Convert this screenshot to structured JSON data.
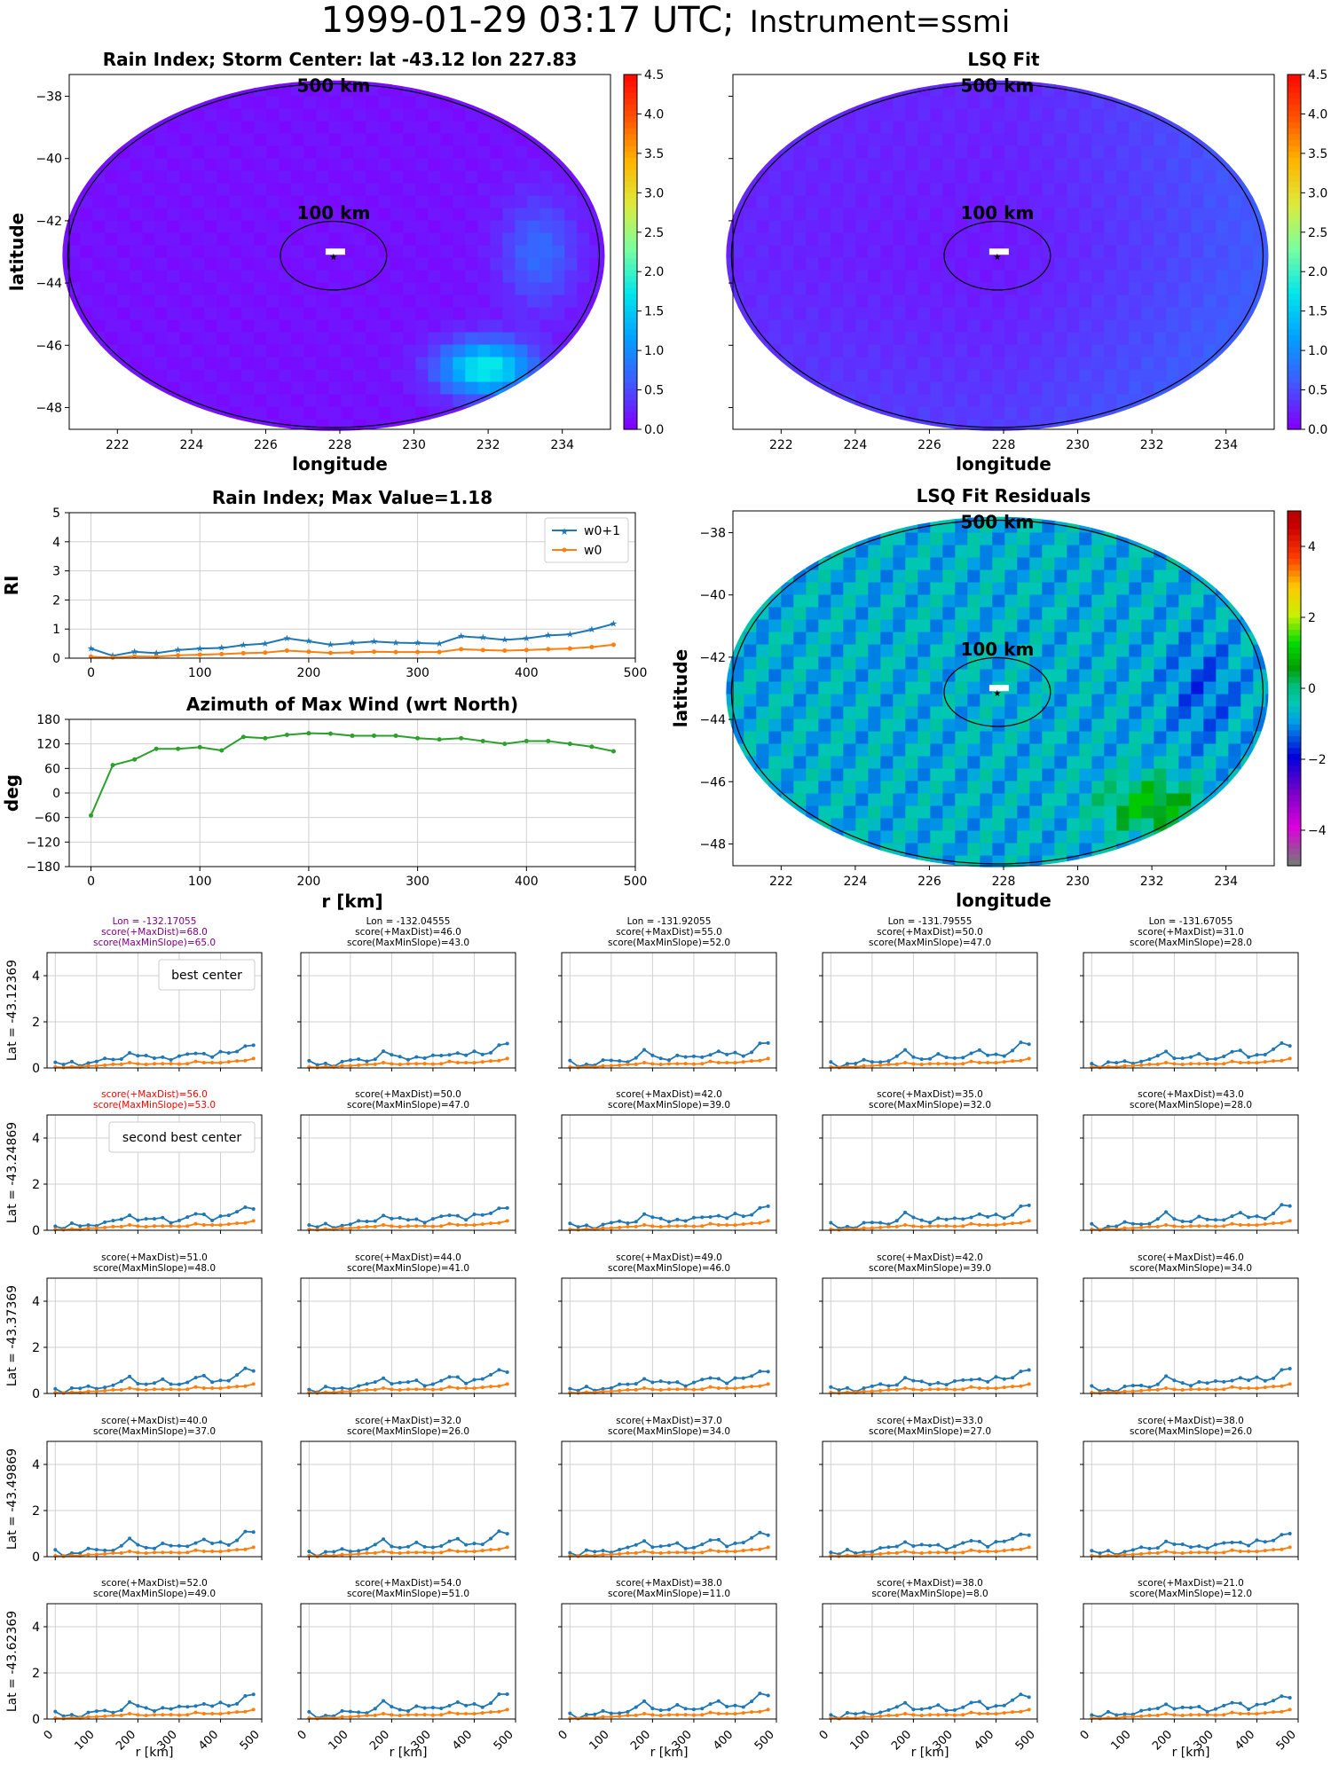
{
  "suptitle": {
    "main": "1999-01-29 03:17 UTC;",
    "instrument": "Instrument=ssmi"
  },
  "colors": {
    "w0p1": "#1f77b4",
    "w0": "#ff7f0e",
    "azimuth": "#2ca02c",
    "best": "#800080",
    "second": "#ff0000",
    "grid": "#d0d0d0"
  },
  "chart_data": [
    {
      "type": "heatmap",
      "title": "Rain Index; Storm Center: lat -43.12 lon 227.83",
      "xlabel": "longitude",
      "ylabel": "latitude",
      "xticks": [
        "222",
        "224",
        "226",
        "228",
        "230",
        "232",
        "234"
      ],
      "yticks": [
        "−38",
        "−40",
        "−42",
        "−44",
        "−46",
        "−48"
      ],
      "xlim": [
        220.7,
        235.3
      ],
      "ylim": [
        -48.7,
        -37.3
      ],
      "colorbar": {
        "ticks": [
          "0.0",
          "0.5",
          "1.0",
          "1.5",
          "2.0",
          "2.5",
          "3.0",
          "3.5",
          "4.0",
          "4.5"
        ],
        "range": [
          0,
          4.5
        ],
        "colormap": "rainbow"
      },
      "annotations": [
        "500 km",
        "100 km"
      ],
      "center": {
        "lon": 227.83,
        "lat": -43.12
      },
      "dominant_value": 0.1,
      "feature": {
        "description": "enhanced rain band south-east of center",
        "max_value": 1.8
      }
    },
    {
      "type": "heatmap",
      "title": "LSQ Fit",
      "xlabel": "longitude",
      "xticks": [
        "222",
        "224",
        "226",
        "228",
        "230",
        "232",
        "234"
      ],
      "xlim": [
        220.7,
        235.3
      ],
      "ylim": [
        -48.7,
        -37.3
      ],
      "colorbar": {
        "ticks": [
          "0.0",
          "0.5",
          "1.0",
          "1.5",
          "2.0",
          "2.5",
          "3.0",
          "3.5",
          "4.0",
          "4.5"
        ],
        "range": [
          0,
          4.5
        ],
        "colormap": "rainbow"
      },
      "annotations": [
        "500 km",
        "100 km"
      ],
      "dominant_value": 0.3
    },
    {
      "type": "line",
      "title": "Rain Index; Max Value=1.18",
      "ylabel": "RI",
      "xticks": [
        "0",
        "100",
        "200",
        "300",
        "400",
        "500"
      ],
      "yticks": [
        "0",
        "1",
        "2",
        "3",
        "4",
        "5"
      ],
      "xlim": [
        -20,
        500
      ],
      "ylim": [
        0,
        5
      ],
      "x": [
        0,
        20,
        40,
        60,
        80,
        100,
        120,
        140,
        160,
        180,
        200,
        220,
        240,
        260,
        280,
        300,
        320,
        340,
        360,
        380,
        400,
        420,
        440,
        460,
        480
      ],
      "series": [
        {
          "name": "w0+1",
          "values": [
            0.33,
            0.08,
            0.22,
            0.17,
            0.28,
            0.33,
            0.35,
            0.45,
            0.5,
            0.68,
            0.58,
            0.46,
            0.52,
            0.57,
            0.53,
            0.52,
            0.5,
            0.75,
            0.7,
            0.63,
            0.68,
            0.78,
            0.82,
            0.98,
            1.18
          ]
        },
        {
          "name": "w0",
          "values": [
            0.05,
            0.02,
            0.06,
            0.05,
            0.1,
            0.12,
            0.14,
            0.17,
            0.19,
            0.26,
            0.22,
            0.18,
            0.2,
            0.22,
            0.21,
            0.21,
            0.21,
            0.31,
            0.28,
            0.26,
            0.28,
            0.31,
            0.33,
            0.38,
            0.46
          ]
        }
      ],
      "legend": "top-right"
    },
    {
      "type": "heatmap",
      "title": "LSQ Fit Residuals",
      "xlabel": "longitude",
      "ylabel": "latitude",
      "xticks": [
        "222",
        "224",
        "226",
        "228",
        "230",
        "232",
        "234"
      ],
      "yticks": [
        "−38",
        "−40",
        "−42",
        "−44",
        "−46",
        "−48"
      ],
      "xlim": [
        220.7,
        235.3
      ],
      "ylim": [
        -48.7,
        -37.3
      ],
      "colorbar": {
        "ticks": [
          "4",
          "2",
          "0",
          "−2",
          "−4"
        ],
        "range": [
          -5,
          5
        ],
        "colormap": "nipy_spectral"
      },
      "annotations": [
        "500 km",
        "100 km"
      ]
    },
    {
      "type": "line",
      "title": "Azimuth of Max Wind (wrt North)",
      "xlabel": "r [km]",
      "ylabel": "deg",
      "xticks": [
        "0",
        "100",
        "200",
        "300",
        "400",
        "500"
      ],
      "yticks": [
        "180",
        "120",
        "60",
        "0",
        "−60",
        "−120",
        "−180"
      ],
      "xlim": [
        -20,
        500
      ],
      "ylim": [
        -180,
        180
      ],
      "x": [
        0,
        20,
        40,
        60,
        80,
        100,
        120,
        140,
        160,
        180,
        200,
        220,
        240,
        260,
        280,
        300,
        320,
        340,
        360,
        380,
        400,
        420,
        440,
        460,
        480
      ],
      "series": [
        {
          "values": [
            -55,
            68,
            82,
            108,
            108,
            112,
            104,
            137,
            134,
            142,
            146,
            145,
            140,
            140,
            140,
            134,
            131,
            134,
            127,
            120,
            127,
            127,
            120,
            113,
            102
          ]
        }
      ]
    },
    {
      "type": "line",
      "grid_rows": 5,
      "grid_cols": 5,
      "xlabel": "r [km]",
      "xticks": [
        "0",
        "100",
        "200",
        "300",
        "400",
        "500"
      ],
      "yticks": [
        "0",
        "2",
        "4"
      ],
      "xlim": [
        -20,
        500
      ],
      "ylim": [
        0,
        5
      ],
      "row_labels": [
        "Lat = -43.12369",
        "Lat = -43.24869",
        "Lat = -43.37369",
        "Lat = -43.49869",
        "Lat = -43.62369"
      ],
      "col_lons": [
        "Lon = -132.17055",
        "Lon = -132.04555",
        "Lon = -131.92055",
        "Lon = -131.79555",
        "Lon = -131.67055"
      ],
      "cells": [
        [
          [
            "Lon = -132.17055",
            "score(+MaxDist)=68.0",
            "score(MaxMinSlope)=65.0"
          ],
          [
            "Lon = -132.04555",
            "score(+MaxDist)=46.0",
            "score(MaxMinSlope)=43.0"
          ],
          [
            "Lon = -131.92055",
            "score(+MaxDist)=55.0",
            "score(MaxMinSlope)=52.0"
          ],
          [
            "Lon = -131.79555",
            "score(+MaxDist)=50.0",
            "score(MaxMinSlope)=47.0"
          ],
          [
            "Lon = -131.67055",
            "score(+MaxDist)=31.0",
            "score(MaxMinSlope)=28.0"
          ]
        ],
        [
          [
            "score(+MaxDist)=56.0",
            "score(MaxMinSlope)=53.0"
          ],
          [
            "score(+MaxDist)=50.0",
            "score(MaxMinSlope)=47.0"
          ],
          [
            "score(+MaxDist)=42.0",
            "score(MaxMinSlope)=39.0"
          ],
          [
            "score(+MaxDist)=35.0",
            "score(MaxMinSlope)=32.0"
          ],
          [
            "score(+MaxDist)=43.0",
            "score(MaxMinSlope)=28.0"
          ]
        ],
        [
          [
            "score(+MaxDist)=51.0",
            "score(MaxMinSlope)=48.0"
          ],
          [
            "score(+MaxDist)=44.0",
            "score(MaxMinSlope)=41.0"
          ],
          [
            "score(+MaxDist)=49.0",
            "score(MaxMinSlope)=46.0"
          ],
          [
            "score(+MaxDist)=42.0",
            "score(MaxMinSlope)=39.0"
          ],
          [
            "score(+MaxDist)=46.0",
            "score(MaxMinSlope)=34.0"
          ]
        ],
        [
          [
            "score(+MaxDist)=40.0",
            "score(MaxMinSlope)=37.0"
          ],
          [
            "score(+MaxDist)=32.0",
            "score(MaxMinSlope)=26.0"
          ],
          [
            "score(+MaxDist)=37.0",
            "score(MaxMinSlope)=34.0"
          ],
          [
            "score(+MaxDist)=33.0",
            "score(MaxMinSlope)=27.0"
          ],
          [
            "score(+MaxDist)=38.0",
            "score(MaxMinSlope)=26.0"
          ]
        ],
        [
          [
            "score(+MaxDist)=52.0",
            "score(MaxMinSlope)=49.0"
          ],
          [
            "score(+MaxDist)=54.0",
            "score(MaxMinSlope)=51.0"
          ],
          [
            "score(+MaxDist)=38.0",
            "score(MaxMinSlope)=11.0"
          ],
          [
            "score(+MaxDist)=38.0",
            "score(MaxMinSlope)=8.0"
          ],
          [
            "score(+MaxDist)=21.0",
            "score(MaxMinSlope)=12.0"
          ]
        ]
      ],
      "highlight": [
        {
          "row": 0,
          "col": 0,
          "label": "best center",
          "color": "#800080"
        },
        {
          "row": 1,
          "col": 0,
          "label": "second best center",
          "color": "#ff0000"
        }
      ],
      "x": [
        0,
        20,
        40,
        60,
        80,
        100,
        120,
        140,
        160,
        180,
        200,
        220,
        240,
        260,
        280,
        300,
        320,
        340,
        360,
        380,
        400,
        420,
        440,
        460,
        480
      ],
      "series": [
        {
          "name": "w0+1",
          "values": [
            0.33,
            0.08,
            0.22,
            0.17,
            0.28,
            0.33,
            0.35,
            0.45,
            0.5,
            0.68,
            0.58,
            0.46,
            0.52,
            0.57,
            0.53,
            0.52,
            0.5,
            0.75,
            0.7,
            0.63,
            0.68,
            0.78,
            0.82,
            0.98,
            1.18
          ]
        },
        {
          "name": "w0",
          "values": [
            0.05,
            0.02,
            0.06,
            0.05,
            0.1,
            0.12,
            0.14,
            0.17,
            0.19,
            0.26,
            0.22,
            0.18,
            0.2,
            0.22,
            0.21,
            0.21,
            0.21,
            0.31,
            0.28,
            0.26,
            0.28,
            0.31,
            0.33,
            0.38,
            0.46
          ]
        }
      ]
    }
  ]
}
